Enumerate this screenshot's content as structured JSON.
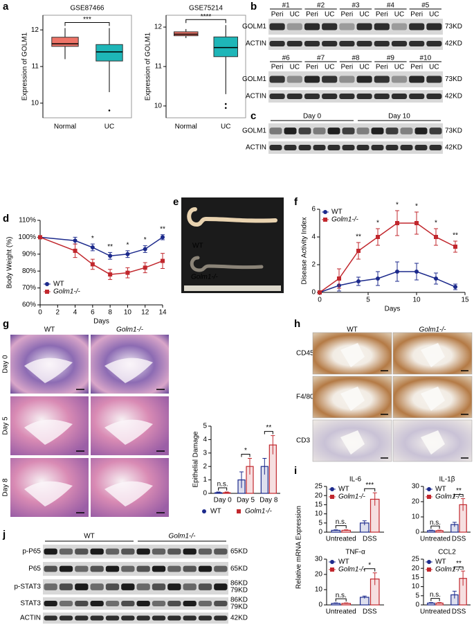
{
  "panel_labels": [
    "a",
    "b",
    "c",
    "d",
    "e",
    "f",
    "g",
    "h",
    "i",
    "j"
  ],
  "chart_data": [
    {
      "type": "box",
      "title": "GSE87466",
      "ylabel": "Expression of GOLM1",
      "categories": [
        "Normal",
        "UC"
      ],
      "colors": [
        "#ee7468",
        "#1eb6b8"
      ],
      "boxes": [
        {
          "min": 11.2,
          "q1": 11.55,
          "median": 11.62,
          "q3": 11.8,
          "max": 12.05,
          "outliers": []
        },
        {
          "min": 10.3,
          "q1": 11.15,
          "median": 11.4,
          "q3": 11.6,
          "max": 12.05,
          "outliers": [
            9.8
          ]
        }
      ],
      "ylim": [
        9.6,
        12.4
      ],
      "yticks": [
        10,
        11,
        12
      ],
      "significance": "***"
    },
    {
      "type": "box",
      "title": "GSE75214",
      "ylabel": "Expression of GOLM1",
      "categories": [
        "Normal",
        "UC"
      ],
      "colors": [
        "#ee7468",
        "#1eb6b8"
      ],
      "boxes": [
        {
          "min": 11.72,
          "q1": 11.78,
          "median": 11.82,
          "q3": 11.88,
          "max": 11.95,
          "outliers": []
        },
        {
          "min": 10.3,
          "q1": 11.25,
          "median": 11.48,
          "q3": 11.75,
          "max": 12.05,
          "outliers": [
            9.95,
            10.05
          ]
        }
      ],
      "ylim": [
        9.7,
        12.3
      ],
      "yticks": [
        10,
        11,
        12
      ],
      "significance": "****"
    },
    {
      "type": "line",
      "ylabel": "Body Weight (%)",
      "xlabel": "Days",
      "x": [
        0,
        4,
        6,
        8,
        10,
        12,
        14
      ],
      "xlim": [
        0,
        14
      ],
      "xticks": [
        0,
        2,
        4,
        6,
        8,
        10,
        12,
        14
      ],
      "ylim": [
        60,
        110
      ],
      "yticks": [
        {
          "value": 60,
          "label": "60%"
        },
        {
          "value": 70,
          "label": "70%"
        },
        {
          "value": 80,
          "label": "80%"
        },
        {
          "value": 90,
          "label": "90%"
        },
        {
          "value": 100,
          "label": "100%"
        },
        {
          "value": 110,
          "label": "110%"
        }
      ],
      "legend": "lower left",
      "series": [
        {
          "name": "WT",
          "color": "#1c2a8c",
          "marker": "circle",
          "values": [
            100,
            98,
            94,
            89,
            90,
            93,
            100
          ],
          "errors": [
            0.5,
            2,
            2,
            2,
            2,
            2,
            1.5
          ]
        },
        {
          "name": "Golm1-/-",
          "color": "#c1272d",
          "marker": "square",
          "values": [
            100,
            92,
            84,
            78,
            79,
            82,
            86
          ],
          "errors": [
            0.5,
            4,
            3,
            3,
            3,
            3,
            4.5
          ]
        }
      ],
      "significance": [
        {
          "x": 6,
          "label": "*"
        },
        {
          "x": 8,
          "label": "**"
        },
        {
          "x": 10,
          "label": "*"
        },
        {
          "x": 12,
          "label": "*"
        },
        {
          "x": 14,
          "label": "**"
        }
      ]
    },
    {
      "type": "line",
      "ylabel": "Disease Activity Index",
      "xlabel": "Days",
      "x": [
        0,
        2,
        4,
        6,
        8,
        10,
        12,
        14
      ],
      "xlim": [
        0,
        15
      ],
      "xticks": [
        0,
        5,
        10,
        15
      ],
      "ylim": [
        0,
        6
      ],
      "yticks": [
        0,
        2,
        4,
        6
      ],
      "legend": "upper left",
      "series": [
        {
          "name": "WT",
          "color": "#1c2a8c",
          "marker": "circle",
          "values": [
            0,
            0.5,
            0.8,
            1.0,
            1.5,
            1.5,
            1.0,
            0.4
          ],
          "errors": [
            0.1,
            0.4,
            0.3,
            0.5,
            0.7,
            0.6,
            0.4,
            0.2
          ]
        },
        {
          "name": "Golm1-/-",
          "color": "#c1272d",
          "marker": "square",
          "values": [
            0,
            1.0,
            3.0,
            4.0,
            5.0,
            5.0,
            4.0,
            3.3
          ],
          "errors": [
            0.1,
            0.7,
            0.6,
            0.6,
            0.9,
            0.8,
            0.6,
            0.4
          ]
        }
      ],
      "significance": [
        {
          "x": 4,
          "label": "**"
        },
        {
          "x": 6,
          "label": "*"
        },
        {
          "x": 8,
          "label": "*"
        },
        {
          "x": 10,
          "label": "*"
        },
        {
          "x": 12,
          "label": "*"
        },
        {
          "x": 14,
          "label": "**"
        }
      ]
    },
    {
      "type": "bar",
      "ylabel": "Epithelial Damage",
      "categories": [
        "Day 0",
        "Day 5",
        "Day 8"
      ],
      "ylim": [
        0,
        5
      ],
      "yticks": [
        0,
        1,
        2,
        3,
        4,
        5
      ],
      "legend": "bottom",
      "series": [
        {
          "name": "WT",
          "color": "#1c2a8c",
          "marker": "circle",
          "values": [
            0.05,
            1.0,
            2.0
          ],
          "errors": [
            0.05,
            0.6,
            0.6
          ]
        },
        {
          "name": "Golm1-/-",
          "color": "#c1272d",
          "marker": "square",
          "values": [
            0.05,
            2.0,
            3.6
          ],
          "errors": [
            0.05,
            0.6,
            0.7
          ]
        }
      ],
      "significance": [
        "n.s.",
        "*",
        "**"
      ]
    },
    {
      "type": "bar",
      "title": "IL-6",
      "ylabel": "Relative mRNA Expression",
      "categories": [
        "Untreated",
        "DSS"
      ],
      "ylim": [
        0,
        25
      ],
      "yticks": [
        0,
        5,
        10,
        15,
        20,
        25
      ],
      "legend": "upper left",
      "series": [
        {
          "name": "WT",
          "color": "#1c2a8c",
          "marker": "circle",
          "values": [
            1.0,
            5.0
          ],
          "errors": [
            0.3,
            1.2
          ]
        },
        {
          "name": "Golm1-/-",
          "color": "#c1272d",
          "marker": "square",
          "values": [
            1.0,
            18
          ],
          "errors": [
            0.3,
            3.5
          ]
        }
      ],
      "significance": [
        "n.s.",
        "***"
      ]
    },
    {
      "type": "bar",
      "title": "IL-1β",
      "categories": [
        "Untreated",
        "DSS"
      ],
      "ylim": [
        0,
        30
      ],
      "yticks": [
        0,
        10,
        20,
        30
      ],
      "legend": "upper left",
      "series": [
        {
          "name": "WT",
          "color": "#1c2a8c",
          "marker": "circle",
          "values": [
            1.0,
            5.0
          ],
          "errors": [
            0.3,
            1.5
          ]
        },
        {
          "name": "Golm1-/-",
          "color": "#c1272d",
          "marker": "square",
          "values": [
            1.0,
            18
          ],
          "errors": [
            0.3,
            4
          ]
        }
      ],
      "significance": [
        "n.s.",
        "**"
      ]
    },
    {
      "type": "bar",
      "title": "TNF-α",
      "categories": [
        "Untreated",
        "DSS"
      ],
      "ylim": [
        0,
        30
      ],
      "yticks": [
        0,
        10,
        20,
        30
      ],
      "legend": "upper left",
      "series": [
        {
          "name": "WT",
          "color": "#1c2a8c",
          "marker": "circle",
          "values": [
            1.0,
            5.0
          ],
          "errors": [
            0.3,
            0.8
          ]
        },
        {
          "name": "Golm1-/-",
          "color": "#c1272d",
          "marker": "square",
          "values": [
            1.0,
            17
          ],
          "errors": [
            0.3,
            4
          ]
        }
      ],
      "significance": [
        "n.s.",
        "*"
      ]
    },
    {
      "type": "bar",
      "title": "CCL2",
      "categories": [
        "Untreated",
        "DSS"
      ],
      "ylim": [
        0,
        25
      ],
      "yticks": [
        0,
        5,
        10,
        15,
        20,
        25
      ],
      "legend": "upper left",
      "series": [
        {
          "name": "WT",
          "color": "#1c2a8c",
          "marker": "circle",
          "values": [
            1.0,
            5.5
          ],
          "errors": [
            0.3,
            2
          ]
        },
        {
          "name": "Golm1-/-",
          "color": "#c1272d",
          "marker": "square",
          "values": [
            1.0,
            14.5
          ],
          "errors": [
            0.3,
            4
          ]
        }
      ],
      "significance": [
        "n.s.",
        "**"
      ]
    }
  ],
  "blots": {
    "b": {
      "lane_labels": [
        "Peri",
        "UC"
      ],
      "sets": [
        {
          "groups": [
            "#1",
            "#2",
            "#3",
            "#4",
            "#5"
          ]
        },
        {
          "groups": [
            "#6",
            "#7",
            "#8",
            "#9",
            "#10"
          ]
        }
      ],
      "rows": [
        {
          "name": "GOLM1",
          "sizes": [
            "73KD"
          ]
        },
        {
          "name": "ACTIN",
          "sizes": [
            "42KD"
          ]
        }
      ]
    },
    "c": {
      "groups": [
        "Day 0",
        "Day 10"
      ],
      "rows": [
        {
          "name": "GOLM1",
          "sizes": [
            "73KD"
          ]
        },
        {
          "name": "ACTIN",
          "sizes": [
            "42KD"
          ]
        }
      ]
    },
    "j": {
      "groups": [
        "WT",
        "Golm1-/-"
      ],
      "rows": [
        {
          "name": "p-P65",
          "sizes": [
            "65KD"
          ]
        },
        {
          "name": "P65",
          "sizes": [
            "65KD"
          ]
        },
        {
          "name": "p-STAT3",
          "sizes": [
            "86KD",
            "79KD"
          ]
        },
        {
          "name": "STAT3",
          "sizes": [
            "86KD",
            "79KD"
          ]
        },
        {
          "name": "ACTIN",
          "sizes": [
            "42KD"
          ]
        }
      ]
    }
  },
  "images": {
    "e": {
      "labels": [
        "WT",
        "Golm1-/-"
      ]
    },
    "g": {
      "columns": [
        "WT",
        "Golm1-/-"
      ],
      "rows": [
        "Day 0",
        "Day 5",
        "Day 8"
      ]
    },
    "h": {
      "columns": [
        "WT",
        "Golm1-/-"
      ],
      "rows": [
        "CD45",
        "F4/80",
        "CD3"
      ]
    }
  }
}
